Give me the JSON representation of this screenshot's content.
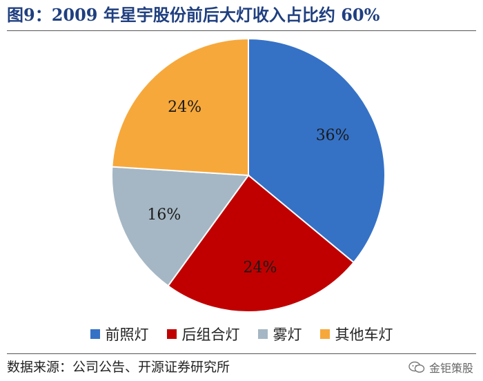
{
  "title": "图9：2009 年星宇股份前后大灯收入占比约 60%",
  "source": "数据来源：公司公告、开源证券研究所",
  "watermark": {
    "text": "金钜策股",
    "icon": "wechat-icon"
  },
  "chart_data": {
    "type": "pie",
    "title": "图9：2009 年星宇股份前后大灯收入占比约 60%",
    "start_angle_deg": 0,
    "direction": "clockwise",
    "legend_position": "bottom",
    "slices": [
      {
        "name": "前照灯",
        "value": 36,
        "label": "36%",
        "color": "#3572c6"
      },
      {
        "name": "后组合灯",
        "value": 24,
        "label": "24%",
        "color": "#c00000"
      },
      {
        "name": "雾灯",
        "value": 16,
        "label": "16%",
        "color": "#a5b7c4"
      },
      {
        "name": "其他车灯",
        "value": 24,
        "label": "24%",
        "color": "#f7a83b"
      }
    ]
  }
}
